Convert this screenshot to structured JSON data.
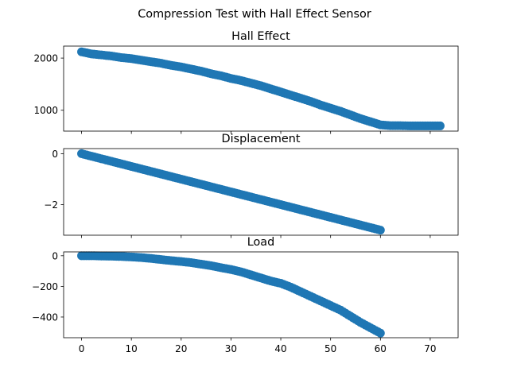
{
  "figure": {
    "title": "Compression Test with Hall Effect Sensor",
    "marker_color": "#1f77b4",
    "x_ticks": [
      0,
      10,
      20,
      30,
      40,
      50,
      60,
      70
    ],
    "xlim": [
      -3.6,
      75.6
    ]
  },
  "chart_data": [
    {
      "type": "scatter",
      "title": "Hall Effect",
      "xlabel": "",
      "ylabel": "",
      "ylim": [
        600,
        2230
      ],
      "y_ticks": [
        1000,
        2000
      ],
      "y_tick_labels": [
        "1000",
        "2000"
      ],
      "grid": false,
      "series": [
        {
          "x": [
            0,
            2,
            4,
            6,
            8,
            10,
            12,
            14,
            16,
            18,
            20,
            22,
            24,
            26,
            28,
            30,
            32,
            34,
            36,
            38,
            40,
            42,
            44,
            46,
            48,
            50,
            52,
            54,
            56,
            58,
            60,
            62,
            64,
            66,
            68,
            70,
            72
          ],
          "y": [
            2120,
            2080,
            2060,
            2040,
            2010,
            1990,
            1960,
            1930,
            1900,
            1860,
            1830,
            1790,
            1750,
            1700,
            1660,
            1610,
            1570,
            1520,
            1470,
            1410,
            1350,
            1290,
            1230,
            1170,
            1100,
            1040,
            980,
            910,
            840,
            780,
            720,
            705,
            705,
            700,
            700,
            700,
            700
          ]
        }
      ]
    },
    {
      "type": "scatter",
      "title": "Displacement",
      "xlabel": "",
      "ylabel": "",
      "ylim": [
        -3.2,
        0.2
      ],
      "y_ticks": [
        -2,
        0
      ],
      "y_tick_labels": [
        "−2",
        "0"
      ],
      "grid": false,
      "series": [
        {
          "x": [
            0,
            2,
            4,
            6,
            8,
            10,
            12,
            14,
            16,
            18,
            20,
            22,
            24,
            26,
            28,
            30,
            32,
            34,
            36,
            38,
            40,
            42,
            44,
            46,
            48,
            50,
            52,
            54,
            56,
            58,
            60
          ],
          "y": [
            0,
            -0.1,
            -0.2,
            -0.3,
            -0.4,
            -0.5,
            -0.6,
            -0.7,
            -0.8,
            -0.9,
            -1.0,
            -1.1,
            -1.2,
            -1.3,
            -1.4,
            -1.5,
            -1.6,
            -1.7,
            -1.8,
            -1.9,
            -2.0,
            -2.1,
            -2.2,
            -2.3,
            -2.4,
            -2.5,
            -2.6,
            -2.7,
            -2.8,
            -2.9,
            -3.0
          ]
        }
      ]
    },
    {
      "type": "scatter",
      "title": "Load",
      "xlabel": "",
      "ylabel": "",
      "ylim": [
        -535,
        25
      ],
      "y_ticks": [
        -400,
        -200,
        0
      ],
      "y_tick_labels": [
        "−400",
        "−200",
        "0"
      ],
      "grid": false,
      "series": [
        {
          "x": [
            0,
            2,
            4,
            6,
            8,
            10,
            12,
            14,
            16,
            18,
            20,
            22,
            24,
            26,
            28,
            30,
            32,
            34,
            36,
            38,
            40,
            42,
            44,
            46,
            48,
            50,
            52,
            54,
            56,
            58,
            60
          ],
          "y": [
            0,
            0,
            -2,
            -3,
            -5,
            -8,
            -12,
            -18,
            -25,
            -32,
            -38,
            -45,
            -55,
            -65,
            -78,
            -90,
            -105,
            -125,
            -145,
            -165,
            -180,
            -205,
            -235,
            -265,
            -295,
            -325,
            -355,
            -395,
            -435,
            -470,
            -505
          ]
        }
      ]
    }
  ]
}
